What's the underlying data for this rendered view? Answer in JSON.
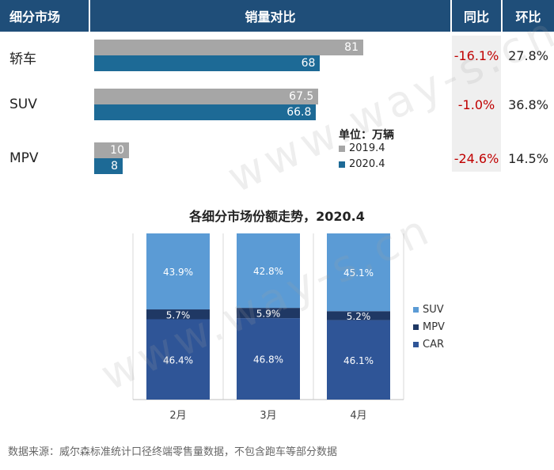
{
  "table": {
    "headers": {
      "segment": "细分市场",
      "sales": "销量对比",
      "yoy": "同比",
      "mom": "环比"
    },
    "unit_label": "单位：万辆",
    "legend": [
      {
        "label": "2019.4",
        "color": "#a6a6a6"
      },
      {
        "label": "2020.4",
        "color": "#1d6a96"
      }
    ],
    "rows": [
      {
        "name": "轿车",
        "v2019": "81",
        "v2020": "68",
        "yoy": "-16.1%",
        "mom": "27.8%"
      },
      {
        "name": "SUV",
        "v2019": "67.5",
        "v2020": "66.8",
        "yoy": "-1.0%",
        "mom": "36.8%"
      },
      {
        "name": "MPV",
        "v2019": "10",
        "v2020": "8",
        "yoy": "-24.6%",
        "mom": "14.5%"
      }
    ]
  },
  "chart_data": [
    {
      "type": "bar",
      "orientation": "horizontal",
      "categories": [
        "轿车",
        "SUV",
        "MPV"
      ],
      "series": [
        {
          "name": "2019.4",
          "values": [
            81,
            67.5,
            10
          ]
        },
        {
          "name": "2020.4",
          "values": [
            68,
            66.8,
            8
          ]
        }
      ],
      "xlim": [
        0,
        81
      ],
      "ylabel": "单位：万辆",
      "legend_position": "right"
    },
    {
      "type": "bar",
      "stacked": true,
      "title": "各细分市场份额走势，2020.4",
      "categories": [
        "2月",
        "3月",
        "4月"
      ],
      "series": [
        {
          "name": "CAR",
          "values": [
            46.4,
            46.8,
            46.1
          ],
          "labels": [
            "46.4%",
            "46.8%",
            "46.1%"
          ],
          "color": "#2f5597"
        },
        {
          "name": "MPV",
          "values": [
            5.7,
            5.9,
            5.2
          ],
          "labels": [
            "5.7%",
            "5.9%",
            "5.2%"
          ],
          "color": "#1f3864"
        },
        {
          "name": "SUV",
          "values": [
            43.9,
            42.8,
            45.1
          ],
          "labels": [
            "43.9%",
            "42.8%",
            "45.1%"
          ],
          "color": "#5b9bd5"
        }
      ],
      "legend_order": [
        "SUV",
        "MPV",
        "CAR"
      ],
      "legend_position": "right",
      "grid": true
    }
  ],
  "source_note": "数据来源：威尔森标准统计口径终端零售量数据，不包含跑车等部分数据",
  "watermark": "www.way-s.cn"
}
